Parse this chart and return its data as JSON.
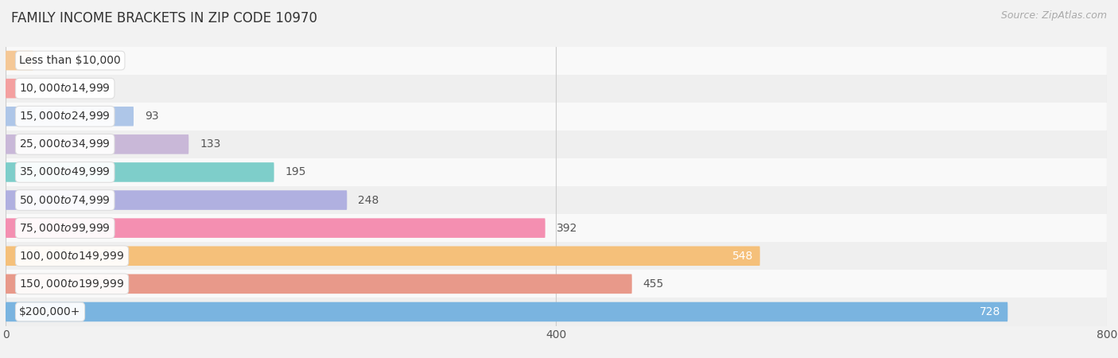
{
  "title": "FAMILY INCOME BRACKETS IN ZIP CODE 10970",
  "source": "Source: ZipAtlas.com",
  "categories": [
    "Less than $10,000",
    "$10,000 to $14,999",
    "$15,000 to $24,999",
    "$25,000 to $34,999",
    "$35,000 to $49,999",
    "$50,000 to $74,999",
    "$75,000 to $99,999",
    "$100,000 to $149,999",
    "$150,000 to $199,999",
    "$200,000+"
  ],
  "values": [
    20,
    8,
    93,
    133,
    195,
    248,
    392,
    548,
    455,
    728
  ],
  "bar_colors": [
    "#f5c896",
    "#f4a0a0",
    "#aec6e8",
    "#c9b8d8",
    "#7ececa",
    "#b0b0e0",
    "#f48fb1",
    "#f5c07a",
    "#e8998a",
    "#7ab4e0"
  ],
  "xlim": [
    0,
    800
  ],
  "xticks": [
    0,
    400,
    800
  ],
  "background_color": "#f2f2f2",
  "row_bg_colors": [
    "#f9f9f9",
    "#efefef"
  ],
  "label_inside_threshold": 500,
  "label_color_inside": "#ffffff",
  "label_color_outside": "#555555",
  "title_fontsize": 12,
  "source_fontsize": 9,
  "label_fontsize": 10,
  "cat_fontsize": 10,
  "tick_fontsize": 10,
  "bar_height": 0.68
}
